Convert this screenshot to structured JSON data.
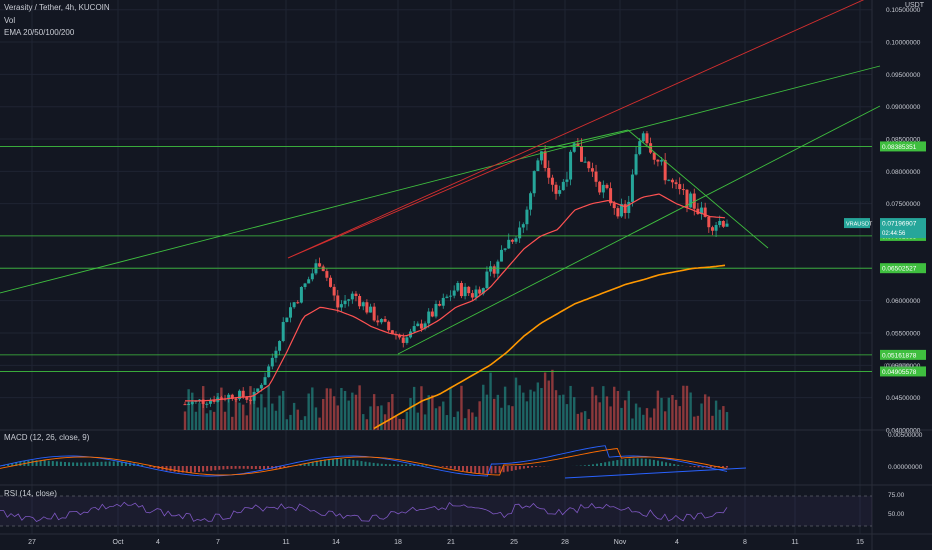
{
  "header": {
    "title": "Verasity / Tether, 4h, KUCOIN",
    "vol_label": "Vol",
    "ema_label": "EMA 20/50/100/200",
    "currency": "USDT"
  },
  "macd_label": "MACD (12, 26, close, 9)",
  "rsi_label": "RSI (14, close)",
  "colors": {
    "background": "#131722",
    "grid": "#1f2433",
    "up": "#26a69a",
    "down": "#ef5350",
    "support": "#3fbf3f",
    "red_line": "#d32f2f",
    "ema_fast": "#ff5252",
    "ema_slow": "#ff9800",
    "macd": "#2962ff",
    "signal": "#ff6d00",
    "rsi": "#7e57c2"
  },
  "chart_data": {
    "type": "candlestick",
    "price_axis": {
      "ticks": [
        "0.10500000",
        "0.10000000",
        "0.09500000",
        "0.09000000",
        "0.08500000",
        "0.08000000",
        "0.07500000",
        "0.07000000",
        "0.06500000",
        "0.06000000",
        "0.05500000",
        "0.05000000",
        "0.04500000",
        "0.04000000"
      ],
      "range": [
        0.04,
        0.1065
      ]
    },
    "time_axis": {
      "labels": [
        "27",
        "Oct",
        "4",
        "7",
        "11",
        "14",
        "18",
        "21",
        "25",
        "28",
        "Nov",
        "4",
        "8",
        "11",
        "15"
      ]
    },
    "symbol_tag": {
      "name": "VRAUSDT",
      "price": "0.07196907",
      "countdown": "02:44:56"
    },
    "horizontal_levels": [
      {
        "label": "0.08385351",
        "value": 0.08385351
      },
      {
        "label": "0.07001635",
        "value": 0.07001635
      },
      {
        "label": "0.06502527",
        "value": 0.06502527
      },
      {
        "label": "0.05161878",
        "value": 0.05161878
      },
      {
        "label": "0.04905578",
        "value": 0.04905578
      }
    ],
    "sub_label": "0.05000000",
    "key_prices": [
      0.044,
      0.0445,
      0.045,
      0.0455,
      0.0448,
      0.05,
      0.058,
      0.062,
      0.0665,
      0.059,
      0.061,
      0.058,
      0.0555,
      0.054,
      0.0565,
      0.059,
      0.062,
      0.061,
      0.064,
      0.069,
      0.072,
      0.084,
      0.076,
      0.0835,
      0.08,
      0.076,
      0.073,
      0.087,
      0.081,
      0.077,
      0.075,
      0.072,
      0.0725
    ],
    "ema_fast": [
      0.0445,
      0.0445,
      0.0447,
      0.045,
      0.0452,
      0.047,
      0.052,
      0.0575,
      0.059,
      0.0585,
      0.0575,
      0.056,
      0.055,
      0.0545,
      0.0555,
      0.057,
      0.059,
      0.06,
      0.062,
      0.065,
      0.068,
      0.07,
      0.071,
      0.074,
      0.075,
      0.0755,
      0.0745,
      0.076,
      0.0765,
      0.075,
      0.074,
      0.073,
      0.0728
    ],
    "ema_slow": [
      null,
      null,
      null,
      null,
      null,
      null,
      null,
      null,
      null,
      null,
      null,
      0.04,
      0.0415,
      0.043,
      0.0445,
      0.0455,
      0.047,
      0.0485,
      0.05,
      0.052,
      0.0545,
      0.0565,
      0.058,
      0.0595,
      0.0605,
      0.0615,
      0.0625,
      0.0632,
      0.064,
      0.0645,
      0.065,
      0.0652,
      0.0655
    ],
    "macd_axis": {
      "ticks": [
        "0.00500000",
        "0.00000000"
      ]
    },
    "rsi_axis": {
      "ticks": [
        "75.00",
        "50.00"
      ]
    }
  }
}
